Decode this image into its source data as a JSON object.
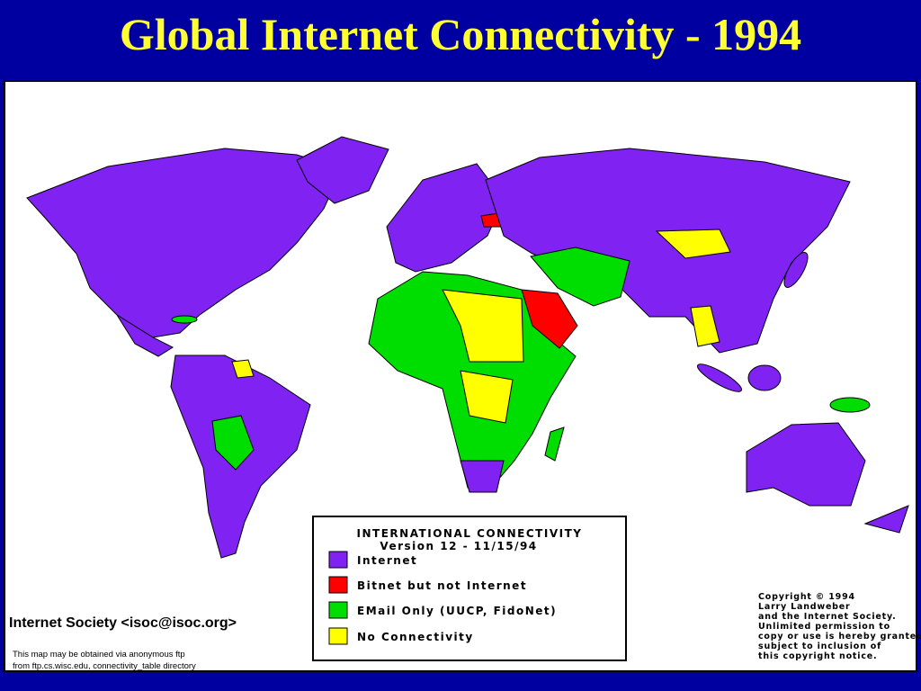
{
  "header": {
    "title": "Global Internet Connectivity - 1994"
  },
  "legend": {
    "title": "INTERNATIONAL CONNECTIVITY",
    "version": "Version 12 - 11/15/94",
    "items": [
      {
        "label": "Internet",
        "color": "#7f22f2"
      },
      {
        "label": "Bitnet but not Internet",
        "color": "#ff0000"
      },
      {
        "label": "EMail Only (UUCP, FidoNet)",
        "color": "#00dd00"
      },
      {
        "label": "No Connectivity",
        "color": "#ffff00"
      }
    ]
  },
  "credit": "Internet Society <isoc@isoc.org>",
  "ftp_note": [
    "This map may be obtained via anonymous ftp",
    "from ftp.cs.wisc.edu, connectivity_table directory"
  ],
  "copyright": [
    "Copyright © 1994",
    "Larry Landweber",
    "and the Internet Society.",
    "Unlimited permission to",
    "copy or use is hereby granted",
    "subject to inclusion of",
    "this copyright notice."
  ]
}
